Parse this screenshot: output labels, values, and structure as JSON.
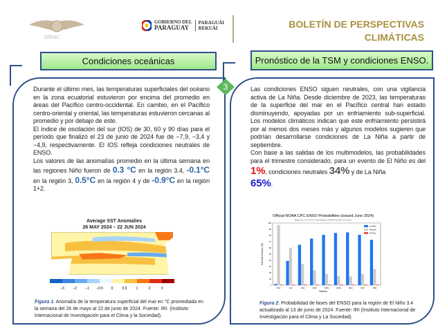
{
  "header": {
    "org_logo": "DINAC",
    "gov_line1": "GOBIERNO DEL",
    "gov_line2": "PARAGUAY",
    "gov_slogan1": "PARAGUÁI",
    "gov_slogan2": "REKUÁI",
    "title_line1": "BOLETÍN DE PERSPECTIVAS",
    "title_line2": "CLIMÁTICAS"
  },
  "left": {
    "heading": "Condiciones oceánicas",
    "badge": "3",
    "p1": "Durante el último mes, las temperaturas superficiales del océano en la zona ecuatorial estuvieron por encima del promedio en áreas del Pacífico centro-occidental. En cambio, en el Pacífico centro-oriental y oriental, las temperaturas estuvieron cercanas al promedio y por debajo de este.",
    "p2": "El índice de oscilación del sur (IOS) de 30, 60 y 90 días para el período que finalizó el 23 de junio de 2024 fue de −7,9, −3,4 y −4,9, respectivamente. El IOS refleja condiciones neutrales de ENSO.",
    "p3a": "Los valores de las anomalías promedio en la última semana en las regiones Niño fueron de ",
    "v1": "0.3 °C",
    "p3b": " en la región 3.4, ",
    "v2": "-0.1°C",
    "p3c": " en la región 3, ",
    "v3": "0.5°C",
    "p3d": " en la región 4 y de ",
    "v4": "-0.9°C",
    "p3e": " en la región 1+2.",
    "map_title1": "Average SST Anomalies",
    "map_title2": "26 MAY 2024 – 22 JUN 2024",
    "colorbar_ticks": [
      "−3",
      "−2",
      "−1",
      "−0.5",
      "0",
      "0.5",
      "1",
      "2",
      "3"
    ],
    "colorbar_colors": [
      "#1560c8",
      "#3a86e0",
      "#6aaaf0",
      "#a8d4f8",
      "#e8f8ff",
      "#fff4a8",
      "#f8c040",
      "#f87818",
      "#e03010",
      "#a00000"
    ],
    "caption_label": "Figura 1",
    "caption": ". Anomalía de la temperatura superficial del mar en °C promediada en la semana del 26 de mayo al 22 de junio de 2024. Fuente: IRI. (Instituto Internacional de Investigación para el Clima y la Sociedad)."
  },
  "right": {
    "heading": "Pronóstico de la TSM y condiciones ENSO.",
    "p1": "Las condiciones ENSO siguen neutrales, con una vigilancia activa de La Niña. Desde diciembre de 2023, las temperaturas de la superficie del mar en el Pacífico central han estado disminuyendo, apoyadas por un enfriamiento sub-superficial. Los modelos climáticos indican que este enfriamiento persistirá por al menos dos meses más y algunos modelos sugieren que podrían desarrollarse condiciones de La Niña a partir de septiembre.",
    "p2a": "Con base a las salidas de los multimodelos, las probabilidades para el trimestre considerado, para un evento de El Niño es del ",
    "elnino": "1%",
    "p2b": ", condiciones neutrales ",
    "neutral": "34%",
    "p2c": " y de La Niña ",
    "lanina": "65%",
    "p2d": ".",
    "caption_label": "Figura 2",
    "caption": ". Probabilidad de fases del ENSO para la región de El Niño 3.4 actualizado al 13 de junio de 2024. Fuente: IRI (Instituto Internacional de Investigación para el Clima y La Sociedad).",
    "colors": {
      "elnino": "#e81010",
      "neutral": "#555555",
      "lanina": "#1a1ad0"
    }
  },
  "chart_data": {
    "type": "bar",
    "title": "Official NOAA CPC ENSO Probabilities (issued June 2024)",
    "subtitle": "Based on -0.5°/+0.5°C thresholds in ERSSTv5 Niño-3.4 index",
    "xlabel": "Season",
    "ylabel": "Percent Chance (%)",
    "ylim": [
      0,
      100
    ],
    "yticks": [
      0,
      10,
      20,
      30,
      40,
      50,
      60,
      70,
      80,
      90,
      100
    ],
    "categories": [
      "MJJ",
      "JJA",
      "JAS",
      "ASO",
      "SON",
      "OND",
      "NDJ",
      "DJF",
      "JFM"
    ],
    "series": [
      {
        "name": "La Niña",
        "color": "#1f77f4",
        "values": [
          2,
          39,
          65,
          75,
          81,
          84,
          85,
          81,
          73
        ]
      },
      {
        "name": "Neutral",
        "color": "#cccccc",
        "values": [
          97,
          60,
          34,
          24,
          18,
          15,
          14,
          18,
          26
        ]
      },
      {
        "name": "El Niño",
        "color": "#f05050",
        "values": [
          1,
          1,
          1,
          1,
          1,
          1,
          1,
          1,
          1
        ]
      }
    ],
    "legend": "top-right",
    "grid": true
  }
}
